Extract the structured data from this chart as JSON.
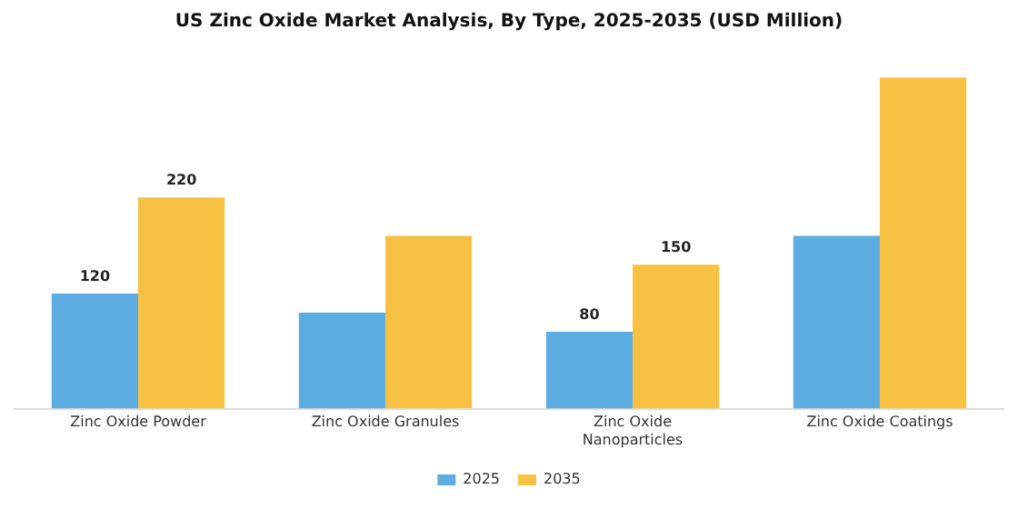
{
  "chart_data": {
    "type": "bar",
    "title": "US Zinc Oxide Market Analysis, By Type, 2025-2035 (USD Million)",
    "categories": [
      "Zinc Oxide Powder",
      "Zinc Oxide Granules",
      "Zinc Oxide Nanoparticles",
      "Zinc Oxide Coatings"
    ],
    "series": [
      {
        "name": "2025",
        "color": "#5dade2",
        "values": [
          120,
          100,
          80,
          180
        ],
        "value_labels": [
          "120",
          null,
          "80",
          null
        ]
      },
      {
        "name": "2035",
        "color": "#f7c244",
        "values": [
          220,
          180,
          150,
          345
        ],
        "value_labels": [
          "220",
          null,
          "150",
          null
        ]
      }
    ],
    "legend": "bottom",
    "grid": false
  }
}
